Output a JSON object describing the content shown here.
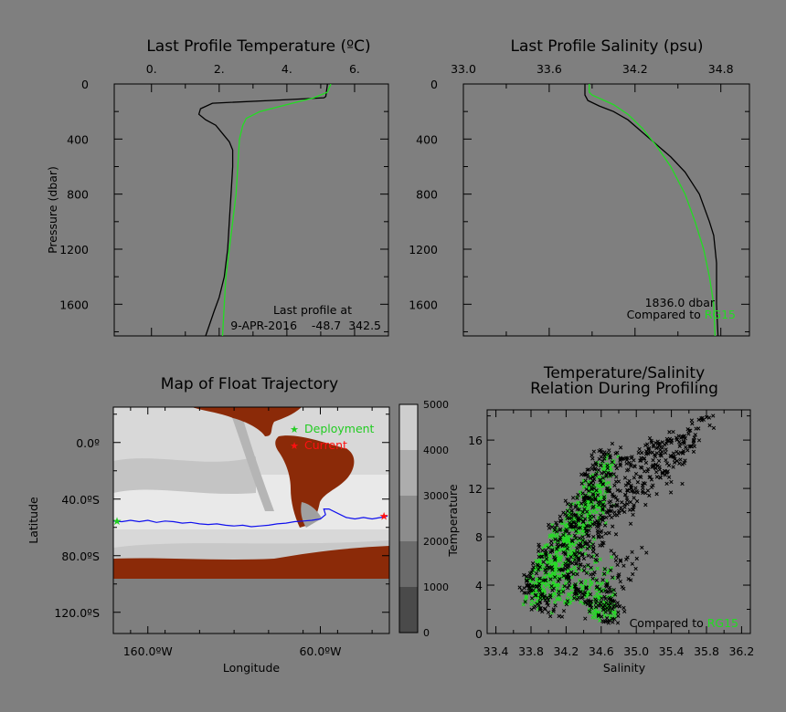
{
  "chart_data": [
    {
      "id": "temp",
      "type": "line",
      "title": "Last Profile Temperature (ºC)",
      "xlabel": "",
      "ylabel": "Pressure (dbar)",
      "xlim": [
        -1.1,
        7.0
      ],
      "ylim": [
        1830,
        0
      ],
      "x_ticks": [
        0,
        2,
        4,
        6
      ],
      "x_tick_labels": [
        "0.",
        "2.",
        "4.",
        "6."
      ],
      "y_ticks": [
        0,
        400,
        800,
        1200,
        1600
      ],
      "y_tick_labels": [
        "0",
        "400",
        "800",
        "1200",
        "1600"
      ],
      "series": [
        {
          "color": "#000000",
          "points": [
            [
              5.2,
              0
            ],
            [
              5.15,
              90
            ],
            [
              5.1,
              100
            ],
            [
              3.5,
              120
            ],
            [
              1.8,
              140
            ],
            [
              1.45,
              180
            ],
            [
              1.4,
              220
            ],
            [
              1.6,
              260
            ],
            [
              1.9,
              300
            ],
            [
              2.1,
              360
            ],
            [
              2.3,
              420
            ],
            [
              2.4,
              480
            ],
            [
              2.4,
              600
            ],
            [
              2.35,
              800
            ],
            [
              2.3,
              1000
            ],
            [
              2.25,
              1200
            ],
            [
              2.15,
              1400
            ],
            [
              2.0,
              1550
            ],
            [
              1.85,
              1650
            ],
            [
              1.6,
              1830
            ]
          ]
        },
        {
          "color": "#22dd22",
          "points": [
            [
              5.3,
              0
            ],
            [
              5.2,
              60
            ],
            [
              4.8,
              100
            ],
            [
              4.0,
              150
            ],
            [
              3.2,
              200
            ],
            [
              2.8,
              250
            ],
            [
              2.7,
              300
            ],
            [
              2.6,
              400
            ],
            [
              2.55,
              600
            ],
            [
              2.5,
              800
            ],
            [
              2.4,
              1000
            ],
            [
              2.3,
              1200
            ],
            [
              2.2,
              1400
            ],
            [
              2.15,
              1600
            ],
            [
              2.1,
              1830
            ]
          ]
        }
      ],
      "notes": [
        "Last profile at",
        "9-APR-2016    -48.7  342.5"
      ]
    },
    {
      "id": "sal",
      "type": "line",
      "title": "Last Profile Salinity (psu)",
      "xlabel": "",
      "ylabel": "",
      "xlim": [
        33.0,
        35.0
      ],
      "ylim": [
        1830,
        0
      ],
      "x_ticks": [
        33.0,
        33.6,
        34.2,
        34.8
      ],
      "x_tick_labels": [
        "33.0",
        "33.6",
        "34.2",
        "34.8"
      ],
      "y_ticks": [
        0,
        400,
        800,
        1200,
        1600
      ],
      "y_tick_labels": [
        "0",
        "400",
        "800",
        "1200",
        "1600"
      ],
      "series": [
        {
          "color": "#000000",
          "points": [
            [
              33.85,
              0
            ],
            [
              33.85,
              80
            ],
            [
              33.87,
              120
            ],
            [
              33.95,
              160
            ],
            [
              34.05,
              200
            ],
            [
              34.15,
              260
            ],
            [
              34.25,
              350
            ],
            [
              34.35,
              440
            ],
            [
              34.45,
              530
            ],
            [
              34.55,
              640
            ],
            [
              34.65,
              800
            ],
            [
              34.72,
              1000
            ],
            [
              34.75,
              1100
            ],
            [
              34.77,
              1300
            ],
            [
              34.77,
              1600
            ],
            [
              34.78,
              1830
            ]
          ]
        },
        {
          "color": "#22dd22",
          "points": [
            [
              33.88,
              0
            ],
            [
              33.88,
              60
            ],
            [
              33.9,
              80
            ],
            [
              34.05,
              150
            ],
            [
              34.15,
              220
            ],
            [
              34.25,
              320
            ],
            [
              34.35,
              450
            ],
            [
              34.45,
              600
            ],
            [
              34.55,
              800
            ],
            [
              34.62,
              1000
            ],
            [
              34.68,
              1200
            ],
            [
              34.72,
              1400
            ],
            [
              34.75,
              1600
            ],
            [
              34.76,
              1830
            ]
          ]
        }
      ],
      "notes": [
        "1836.0 dbar",
        "Compared to ",
        "RG15"
      ]
    },
    {
      "id": "map",
      "type": "heatmap",
      "title": "Map of Float Trajectory",
      "xlabel": "Longitude",
      "ylabel": "Latitude",
      "xlim": [
        -180,
        -20
      ],
      "ylim": [
        -135,
        25
      ],
      "x_ticks": [
        -160,
        -60
      ],
      "x_tick_labels": [
        "160.0ºW",
        "60.0ºW"
      ],
      "y_ticks": [
        0,
        -40,
        -80,
        -120
      ],
      "y_tick_labels": [
        "0.0º",
        "40.0ºS",
        "80.0ºS",
        "120.0ºS"
      ],
      "legend": [
        "Deployment",
        "Current"
      ],
      "legend_colors": [
        "#22cc22",
        "#ff1010"
      ],
      "colorbar_ticks": [
        0,
        1000,
        2000,
        3000,
        4000,
        5000
      ],
      "colorbar_tick_labels": [
        "0",
        "1000",
        "2000",
        "3000",
        "4000",
        "5000"
      ],
      "land_color": "#8b2a08",
      "track_color": "#1010ee",
      "trajectory": [
        [
          -180,
          -55.5
        ],
        [
          -175,
          -56
        ],
        [
          -170,
          -55
        ],
        [
          -165,
          -56
        ],
        [
          -160,
          -55
        ],
        [
          -155,
          -56.5
        ],
        [
          -150,
          -55.5
        ],
        [
          -145,
          -56
        ],
        [
          -140,
          -57
        ],
        [
          -135,
          -56.5
        ],
        [
          -130,
          -57.5
        ],
        [
          -125,
          -58
        ],
        [
          -120,
          -57.5
        ],
        [
          -115,
          -58.5
        ],
        [
          -110,
          -59
        ],
        [
          -105,
          -58.5
        ],
        [
          -100,
          -59.5
        ],
        [
          -95,
          -59
        ],
        [
          -90,
          -58.5
        ],
        [
          -85,
          -57.5
        ],
        [
          -80,
          -57
        ],
        [
          -75,
          -56
        ],
        [
          -70,
          -55.5
        ],
        [
          -65,
          -55
        ],
        [
          -60,
          -54
        ],
        [
          -57,
          -51
        ],
        [
          -58,
          -47
        ],
        [
          -55,
          -47
        ],
        [
          -50,
          -50
        ],
        [
          -45,
          -53
        ],
        [
          -40,
          -54
        ],
        [
          -35,
          -53
        ],
        [
          -30,
          -54
        ],
        [
          -25,
          -53
        ],
        [
          -21,
          -52
        ]
      ],
      "deployment_point": [
        -180,
        -55.5
      ],
      "current_point": [
        -21,
        -52
      ]
    },
    {
      "id": "ts",
      "type": "scatter",
      "title": "Temperature/Salinity",
      "subtitle": "Relation During Profiling",
      "xlabel": "Salinity",
      "ylabel": "Temperature",
      "xlim": [
        33.3,
        36.3
      ],
      "ylim": [
        0,
        18.5
      ],
      "x_ticks": [
        33.4,
        33.8,
        34.2,
        34.6,
        35.0,
        35.4,
        35.8,
        36.2
      ],
      "x_tick_labels": [
        "33.4",
        "33.8",
        "34.2",
        "34.6",
        "35.0",
        "35.4",
        "35.8",
        "36.2"
      ],
      "y_ticks": [
        0,
        4,
        8,
        12,
        16
      ],
      "y_tick_labels": [
        "0",
        "4",
        "8",
        "12",
        "16"
      ],
      "series_colors": [
        "#22dd22",
        "#000000"
      ],
      "green_cloud": [
        [
          33.8,
          2.6
        ],
        [
          33.85,
          4
        ],
        [
          33.95,
          6
        ],
        [
          34.1,
          8
        ],
        [
          34.3,
          10
        ],
        [
          34.5,
          12
        ],
        [
          34.65,
          13.5
        ],
        [
          34.7,
          14.5
        ],
        [
          34.55,
          11
        ],
        [
          34.4,
          9
        ],
        [
          34.25,
          7
        ],
        [
          34.1,
          5
        ],
        [
          34.0,
          3.5
        ],
        [
          34.2,
          3
        ],
        [
          34.5,
          3
        ],
        [
          34.7,
          2
        ],
        [
          34.7,
          1.5
        ]
      ],
      "black_cloud": [
        [
          33.75,
          3
        ],
        [
          33.8,
          4.5
        ],
        [
          33.95,
          6.5
        ],
        [
          34.1,
          8.5
        ],
        [
          34.3,
          10.5
        ],
        [
          34.5,
          13
        ],
        [
          34.6,
          15
        ],
        [
          34.9,
          14
        ],
        [
          35.2,
          15.5
        ],
        [
          35.5,
          16.5
        ],
        [
          35.8,
          17.5
        ],
        [
          35.6,
          15.5
        ],
        [
          35.3,
          13.5
        ],
        [
          35.0,
          12
        ],
        [
          34.7,
          10
        ],
        [
          34.5,
          8
        ],
        [
          34.3,
          6
        ],
        [
          34.2,
          4
        ],
        [
          34.4,
          3
        ],
        [
          34.6,
          2.2
        ],
        [
          34.75,
          1.8
        ],
        [
          34.7,
          1.4
        ],
        [
          33.9,
          1.8
        ]
      ],
      "notes": [
        "Compared to ",
        "RG15"
      ]
    }
  ]
}
